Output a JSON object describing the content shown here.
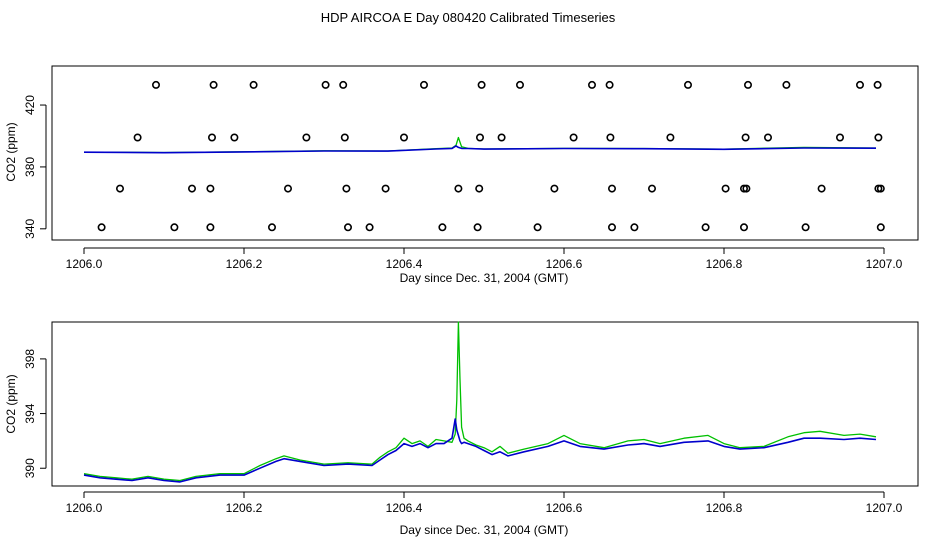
{
  "title": "HDP AIRCOA E  Day 080420  Calibrated Timeseries",
  "colors": {
    "flask": "#000000",
    "green": "#00c000",
    "blue": "#0000cc"
  },
  "chart_data": [
    {
      "type": "scatter",
      "xlabel": "Day since Dec. 31, 2004 (GMT)",
      "ylabel": "CO2 (ppm)",
      "xlim": [
        1206.0,
        1207.0
      ],
      "ylim": [
        336,
        442
      ],
      "xticks": [
        "1206.0",
        "1206.2",
        "1206.4",
        "1206.6",
        "1206.8",
        "1207.0"
      ],
      "yticks": [
        "340",
        "380",
        "420"
      ],
      "markers": {
        "y": [
          341,
          366,
          399,
          433
        ],
        "x": [
          [
            1206.022,
            1206.113,
            1206.158,
            1206.235,
            1206.33,
            1206.357,
            1206.448,
            1206.492,
            1206.567,
            1206.66,
            1206.688,
            1206.777,
            1206.825,
            1206.902,
            1206.996
          ],
          [
            1206.045,
            1206.135,
            1206.158,
            1206.255,
            1206.328,
            1206.377,
            1206.468,
            1206.494,
            1206.588,
            1206.66,
            1206.71,
            1206.802,
            1206.825,
            1206.828,
            1206.922,
            1206.993,
            1206.996
          ],
          [
            1206.067,
            1206.16,
            1206.188,
            1206.278,
            1206.326,
            1206.4,
            1206.495,
            1206.522,
            1206.612,
            1206.658,
            1206.733,
            1206.827,
            1206.855,
            1206.945,
            1206.993
          ],
          [
            1206.09,
            1206.162,
            1206.212,
            1206.302,
            1206.324,
            1206.425,
            1206.497,
            1206.545,
            1206.635,
            1206.657,
            1206.755,
            1206.83,
            1206.878,
            1206.97,
            1206.992
          ]
        ]
      },
      "series": [
        {
          "color": "green",
          "x": [
            1206.0,
            1206.1,
            1206.2,
            1206.3,
            1206.38,
            1206.44,
            1206.46,
            1206.465,
            1206.468,
            1206.472,
            1206.48,
            1206.5,
            1206.6,
            1206.7,
            1206.8,
            1206.9,
            1206.99
          ],
          "y": [
            389.6,
            389.3,
            389.8,
            390.4,
            390.3,
            391.8,
            392.2,
            394.0,
            399.0,
            393.0,
            392.0,
            391.6,
            392.0,
            391.9,
            391.5,
            392.6,
            392.2
          ]
        },
        {
          "color": "blue",
          "x": [
            1206.0,
            1206.1,
            1206.2,
            1206.3,
            1206.38,
            1206.44,
            1206.46,
            1206.465,
            1206.468,
            1206.472,
            1206.48,
            1206.5,
            1206.6,
            1206.7,
            1206.8,
            1206.9,
            1206.99
          ],
          "y": [
            389.5,
            389.2,
            389.7,
            390.3,
            390.2,
            391.6,
            392.0,
            393.6,
            392.6,
            392.0,
            391.9,
            391.5,
            391.9,
            391.8,
            391.4,
            392.2,
            392.1
          ]
        }
      ]
    },
    {
      "type": "line",
      "xlabel": "Day since Dec. 31, 2004 (GMT)",
      "ylabel": "CO2 (ppm)",
      "xlim": [
        1206.0,
        1207.0
      ],
      "ylim": [
        388.7,
        400.7
      ],
      "xticks": [
        "1206.0",
        "1206.2",
        "1206.4",
        "1206.6",
        "1206.8",
        "1207.0"
      ],
      "yticks": [
        "390",
        "394",
        "398"
      ],
      "series": [
        {
          "color": "green",
          "x": [
            1206.0,
            1206.02,
            1206.04,
            1206.06,
            1206.08,
            1206.1,
            1206.12,
            1206.14,
            1206.17,
            1206.2,
            1206.22,
            1206.24,
            1206.25,
            1206.27,
            1206.3,
            1206.33,
            1206.36,
            1206.37,
            1206.38,
            1206.39,
            1206.4,
            1206.41,
            1206.42,
            1206.43,
            1206.44,
            1206.45,
            1206.46,
            1206.464,
            1206.466,
            1206.468,
            1206.47,
            1206.472,
            1206.475,
            1206.48,
            1206.49,
            1206.5,
            1206.51,
            1206.52,
            1206.53,
            1206.55,
            1206.58,
            1206.6,
            1206.62,
            1206.65,
            1206.68,
            1206.7,
            1206.72,
            1206.75,
            1206.78,
            1206.8,
            1206.82,
            1206.85,
            1206.88,
            1206.9,
            1206.92,
            1206.95,
            1206.97,
            1206.99
          ],
          "y": [
            389.6,
            389.4,
            389.3,
            389.2,
            389.4,
            389.2,
            389.1,
            389.4,
            389.6,
            389.6,
            390.2,
            390.7,
            390.9,
            390.6,
            390.3,
            390.4,
            390.3,
            390.8,
            391.2,
            391.5,
            392.2,
            391.8,
            392.0,
            391.6,
            392.1,
            392.0,
            391.9,
            392.5,
            395.0,
            400.7,
            396.5,
            393.0,
            392.2,
            392.0,
            391.7,
            391.5,
            391.2,
            391.6,
            391.1,
            391.4,
            391.8,
            392.4,
            391.8,
            391.5,
            392.0,
            392.1,
            391.8,
            392.2,
            392.4,
            391.8,
            391.5,
            391.6,
            392.3,
            392.6,
            392.7,
            392.4,
            392.5,
            392.3
          ]
        },
        {
          "color": "blue",
          "x": [
            1206.0,
            1206.02,
            1206.04,
            1206.06,
            1206.08,
            1206.1,
            1206.12,
            1206.14,
            1206.17,
            1206.2,
            1206.22,
            1206.24,
            1206.25,
            1206.27,
            1206.3,
            1206.33,
            1206.36,
            1206.37,
            1206.38,
            1206.39,
            1206.4,
            1206.41,
            1206.42,
            1206.43,
            1206.44,
            1206.45,
            1206.46,
            1206.464,
            1206.466,
            1206.468,
            1206.47,
            1206.472,
            1206.475,
            1206.48,
            1206.49,
            1206.5,
            1206.51,
            1206.52,
            1206.53,
            1206.55,
            1206.58,
            1206.6,
            1206.62,
            1206.65,
            1206.68,
            1206.7,
            1206.72,
            1206.75,
            1206.78,
            1206.8,
            1206.82,
            1206.85,
            1206.88,
            1206.9,
            1206.92,
            1206.95,
            1206.97,
            1206.99
          ],
          "y": [
            389.5,
            389.3,
            389.2,
            389.1,
            389.3,
            389.1,
            389.0,
            389.3,
            389.5,
            389.5,
            390.0,
            390.5,
            390.7,
            390.5,
            390.2,
            390.3,
            390.2,
            390.6,
            391.0,
            391.3,
            391.8,
            391.6,
            391.8,
            391.5,
            391.8,
            391.8,
            392.2,
            393.6,
            392.8,
            392.4,
            392.0,
            391.8,
            391.9,
            391.8,
            391.6,
            391.3,
            391.0,
            391.2,
            390.9,
            391.2,
            391.6,
            392.0,
            391.6,
            391.4,
            391.7,
            391.8,
            391.6,
            391.9,
            392.0,
            391.6,
            391.4,
            391.5,
            391.9,
            392.2,
            392.2,
            392.1,
            392.2,
            392.1
          ]
        }
      ]
    }
  ]
}
